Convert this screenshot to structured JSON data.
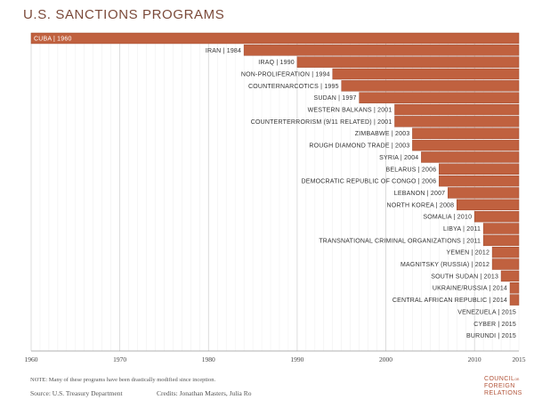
{
  "title": "U.S. SANCTIONS PROGRAMS",
  "note": "NOTE: Many of these programs have been drastically modified since inception.",
  "source": "Source: U.S. Treasury Department",
  "credits": "Credits: Jonathan Masters, Julia Ro",
  "logo": {
    "line1": "COUNCIL",
    "line1_small": "on",
    "line2": "FOREIGN",
    "line3": "RELATIONS"
  },
  "colors": {
    "bar": "#c0613f",
    "bar_border": "#a04a2e",
    "title": "#7b4a3a",
    "grid": "#dddddd"
  },
  "chart_data": {
    "type": "bar",
    "orientation": "horizontal",
    "title": "U.S. SANCTIONS PROGRAMS",
    "xlim": [
      1960,
      2015
    ],
    "xticks": [
      "1960",
      "1970",
      "1980",
      "1990",
      "2000",
      "2010",
      "2015"
    ],
    "grid": true,
    "categories": [
      "CUBA | 1960",
      "IRAN | 1984",
      "IRAQ | 1990",
      "NON-PROLIFERATION | 1994",
      "COUNTERNARCOTICS | 1995",
      "SUDAN | 1997",
      "WESTERN BALKANS | 2001",
      "COUNTERTERRORISM (9/11 RELATED) | 2001",
      "ZIMBABWE | 2003",
      "ROUGH DIAMOND TRADE | 2003",
      "SYRIA | 2004",
      "BELARUS | 2006",
      "DEMOCRATIC REPUBLIC OF CONGO | 2006",
      "LEBANON | 2007",
      "NORTH KOREA | 2008",
      "SOMALIA | 2010",
      "LIBYA | 2011",
      "TRANSNATIONAL CRIMINAL ORGANIZATIONS | 2011",
      "YEMEN | 2012",
      "MAGNITSKY (RUSSIA) | 2012",
      "SOUTH SUDAN | 2013",
      "UKRAINE/RUSSIA | 2014",
      "CENTRAL AFRICAN REPUBLIC | 2014",
      "VENEZUELA | 2015",
      "CYBER | 2015",
      "BURUNDI | 2015"
    ],
    "start_years": [
      1960,
      1984,
      1990,
      1994,
      1995,
      1997,
      2001,
      2001,
      2003,
      2003,
      2004,
      2006,
      2006,
      2007,
      2008,
      2010,
      2011,
      2011,
      2012,
      2012,
      2013,
      2014,
      2014,
      2015,
      2015,
      2015
    ],
    "end_year": 2015
  }
}
